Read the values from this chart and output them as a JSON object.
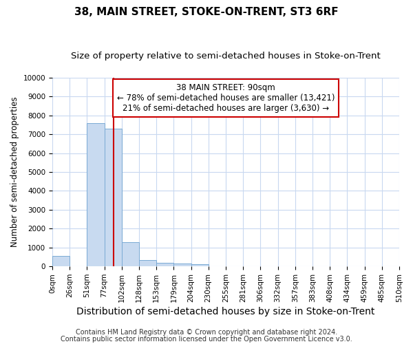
{
  "title": "38, MAIN STREET, STOKE-ON-TRENT, ST3 6RF",
  "subtitle": "Size of property relative to semi-detached houses in Stoke-on-Trent",
  "xlabel": "Distribution of semi-detached houses by size in Stoke-on-Trent",
  "ylabel": "Number of semi-detached properties",
  "footnote1": "Contains HM Land Registry data © Crown copyright and database right 2024.",
  "footnote2": "Contains public sector information licensed under the Open Government Licence v3.0.",
  "bin_width": 25.5,
  "bin_starts": [
    0,
    25.5,
    51,
    76.5,
    102,
    127.5,
    153,
    178.5,
    204,
    229.5,
    255,
    280.5,
    306,
    331.5,
    357,
    382.5,
    408,
    433.5,
    459,
    484.5
  ],
  "bar_heights": [
    550,
    0,
    7600,
    7300,
    1300,
    350,
    200,
    150,
    100,
    0,
    0,
    0,
    0,
    0,
    0,
    0,
    0,
    0,
    0,
    0
  ],
  "bar_color": "#c8daf0",
  "bar_edge_color": "#7aaad4",
  "property_line_x": 90,
  "property_line_color": "#cc0000",
  "annotation_text_line1": "38 MAIN STREET: 90sqm",
  "annotation_text_line2": "← 78% of semi-detached houses are smaller (13,421)",
  "annotation_text_line3": "21% of semi-detached houses are larger (3,630) →",
  "annotation_box_facecolor": "#ffffff",
  "annotation_border_color": "#cc0000",
  "ylim": [
    0,
    10000
  ],
  "xlim": [
    0,
    510
  ],
  "yticks": [
    0,
    1000,
    2000,
    3000,
    4000,
    5000,
    6000,
    7000,
    8000,
    9000,
    10000
  ],
  "xtick_positions": [
    0,
    25.5,
    51,
    76.5,
    102,
    127.5,
    153,
    178.5,
    204,
    229.5,
    255,
    280.5,
    306,
    331.5,
    357,
    382.5,
    408,
    433.5,
    459,
    484.5,
    510
  ],
  "xtick_labels": [
    "0sqm",
    "26sqm",
    "51sqm",
    "77sqm",
    "102sqm",
    "128sqm",
    "153sqm",
    "179sqm",
    "204sqm",
    "230sqm",
    "255sqm",
    "281sqm",
    "306sqm",
    "332sqm",
    "357sqm",
    "383sqm",
    "408sqm",
    "434sqm",
    "459sqm",
    "485sqm",
    "510sqm"
  ],
  "figure_bg": "#ffffff",
  "axes_bg": "#ffffff",
  "grid_color": "#c8d8f0",
  "grid_linewidth": 0.8,
  "title_fontsize": 11,
  "subtitle_fontsize": 9.5,
  "xlabel_fontsize": 10,
  "ylabel_fontsize": 8.5,
  "tick_fontsize": 7.5,
  "annotation_fontsize": 8.5,
  "footnote_fontsize": 7
}
